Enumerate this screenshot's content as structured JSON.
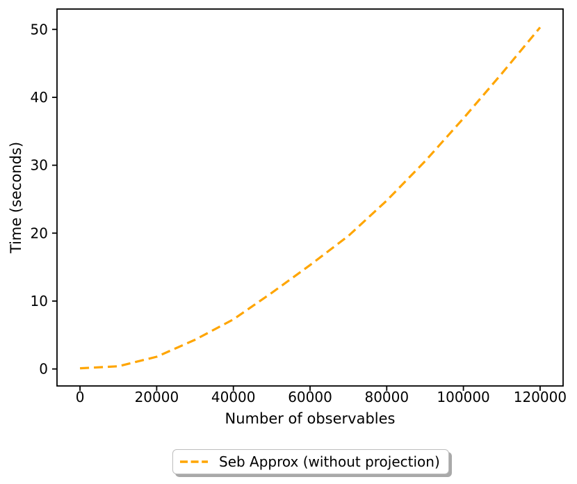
{
  "figure": {
    "background": "#ffffff",
    "axis_color": "#000000",
    "text_color": "#000000"
  },
  "chart_data": {
    "type": "line",
    "title": "",
    "xlabel": "Number of observables",
    "ylabel": "Time (seconds)",
    "xlim": [
      -6000,
      126000
    ],
    "ylim": [
      -2.5,
      53
    ],
    "xticks": [
      0,
      20000,
      40000,
      60000,
      80000,
      100000,
      120000
    ],
    "yticks": [
      0,
      10,
      20,
      30,
      40,
      50
    ],
    "grid": false,
    "legend_position": "below-center",
    "series": [
      {
        "name": "Seb Approx (without projection)",
        "color": "#FFA500",
        "linestyle": "dashed",
        "linewidth": 3.2,
        "x": [
          0,
          10000,
          20000,
          30000,
          40000,
          50000,
          60000,
          70000,
          80000,
          90000,
          100000,
          110000,
          120000
        ],
        "y": [
          0.1,
          0.4,
          1.8,
          4.3,
          7.3,
          11.2,
          15.3,
          19.6,
          24.8,
          30.6,
          36.9,
          43.5,
          50.3
        ]
      }
    ]
  }
}
